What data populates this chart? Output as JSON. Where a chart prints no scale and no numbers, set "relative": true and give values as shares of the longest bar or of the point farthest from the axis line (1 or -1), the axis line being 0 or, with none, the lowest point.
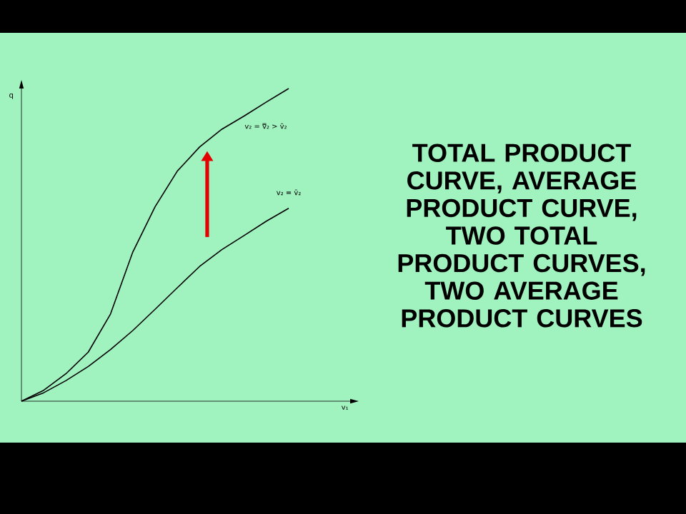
{
  "chart_data": {
    "type": "line",
    "title": "TOTAL PRODUCT CURVE, AVERAGE PRODUCT CURVE, TWO TOTAL PRODUCT CURVES, TWO AVERAGE PRODUCT CURVES",
    "annotations": [
      "v₁"
    ],
    "ylabel": "q",
    "relative": true,
    "categories": [
      null,
      null,
      null,
      null,
      null,
      null,
      null,
      null,
      null,
      null,
      null,
      null,
      null
    ],
    "series": [
      {
        "name": "v₂ = v̿₂ > v̄₂",
        "color": "#000000",
        "values": [
          0,
          0.035,
          0.088,
          0.157,
          0.279,
          0.477,
          0.622,
          0.736,
          0.813,
          0.87,
          0.912,
          0.957,
          1
        ]
      },
      {
        "name": "v₂ = v̄₂",
        "color": "#000000",
        "values": [
          0,
          0.027,
          0.066,
          0.111,
          0.165,
          0.226,
          0.294,
          0.363,
          0.431,
          0.485,
          0.53,
          0.576,
          0.617
        ]
      }
    ]
  }
}
